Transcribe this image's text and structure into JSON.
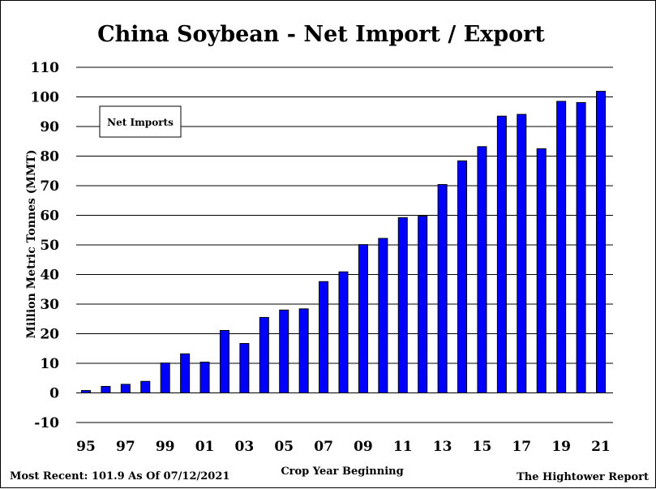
{
  "chart_data": {
    "type": "bar",
    "title": "China Soybean - Net Import / Export",
    "xlabel": "Crop Year Beginning",
    "ylabel": "Million Metric Tonnes (MMT)",
    "ylim": [
      -10,
      110
    ],
    "yticks": [
      "-10",
      "0",
      "10",
      "20",
      "30",
      "40",
      "50",
      "60",
      "70",
      "80",
      "90",
      "100",
      "110"
    ],
    "grid": true,
    "legend_position": "top-left",
    "series": [
      {
        "name": "Net Imports",
        "color": "#0000ff",
        "values": [
          0.8,
          2.2,
          2.9,
          3.9,
          10.1,
          13.2,
          10.4,
          21.1,
          16.7,
          25.5,
          28.0,
          28.4,
          37.6,
          40.9,
          50.1,
          52.2,
          59.2,
          59.7,
          70.4,
          78.4,
          83.2,
          93.5,
          94.1,
          82.5,
          98.5,
          98.1,
          101.9
        ]
      }
    ],
    "categories": [
      "95",
      "96",
      "97",
      "98",
      "99",
      "00",
      "01",
      "02",
      "03",
      "04",
      "05",
      "06",
      "07",
      "08",
      "09",
      "10",
      "11",
      "12",
      "13",
      "14",
      "15",
      "16",
      "17",
      "18",
      "19",
      "20",
      "21"
    ],
    "xtick_labels": [
      "95",
      "97",
      "99",
      "01",
      "03",
      "05",
      "07",
      "09",
      "11",
      "13",
      "15",
      "17",
      "19",
      "21"
    ],
    "footer_left": "Most Recent: 101.9 As Of 07/12/2021",
    "footer_right": "The Hightower Report"
  }
}
